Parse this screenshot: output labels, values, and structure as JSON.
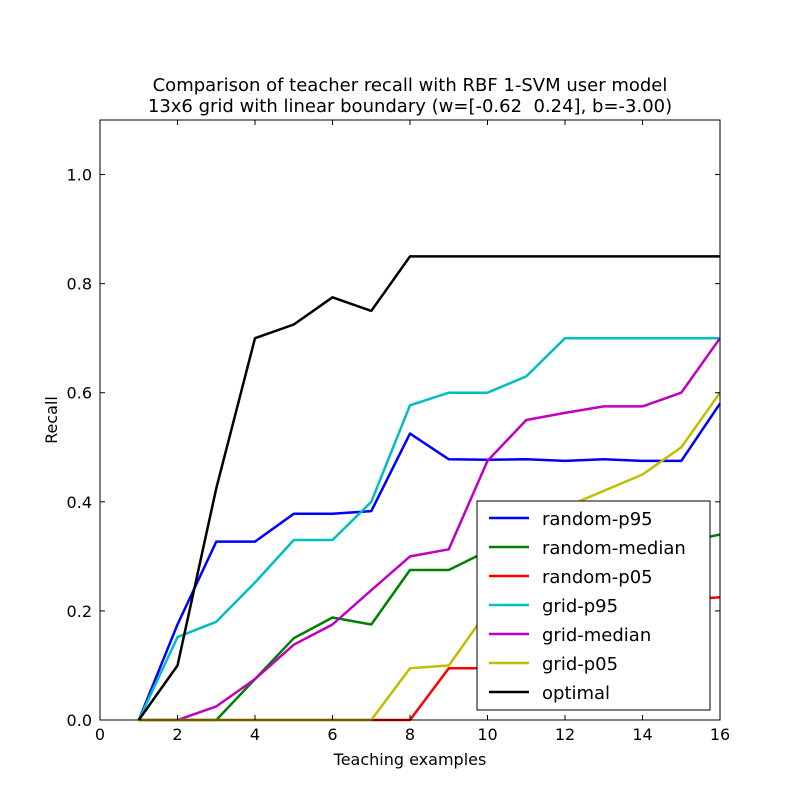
{
  "chart_data": {
    "type": "line",
    "title": "Comparison of teacher recall with RBF 1-SVM user model",
    "subtitle": "13x6 grid with linear boundary (w=[-0.62  0.24], b=-3.00)",
    "xlabel": "Teaching examples",
    "ylabel": "Recall",
    "xlim": [
      0,
      16
    ],
    "ylim": [
      0,
      1.1
    ],
    "xticks": [
      0,
      2,
      4,
      6,
      8,
      10,
      12,
      14,
      16
    ],
    "xtick_labels": [
      "0",
      "2",
      "4",
      "6",
      "8",
      "10",
      "12",
      "14",
      "16"
    ],
    "yticks": [
      0,
      0.2,
      0.4,
      0.6,
      0.8,
      1.0
    ],
    "ytick_labels": [
      "0.0",
      "0.2",
      "0.4",
      "0.6",
      "0.8",
      "1.0"
    ],
    "grid": false,
    "legend_position": "lower-right",
    "x": [
      1,
      2,
      3,
      4,
      5,
      6,
      7,
      8,
      9,
      10,
      11,
      12,
      13,
      14,
      15,
      16
    ],
    "series": [
      {
        "name": "random-p95",
        "color": "#0000ff",
        "values": [
          0,
          0.175,
          0.327,
          0.327,
          0.378,
          0.378,
          0.383,
          0.525,
          0.478,
          0.477,
          0.478,
          0.475,
          0.478,
          0.475,
          0.475,
          0.58
        ]
      },
      {
        "name": "random-median",
        "color": "#008000",
        "values": [
          0,
          0,
          0,
          0.075,
          0.15,
          0.188,
          0.175,
          0.275,
          0.275,
          0.31,
          0.32,
          0.32,
          0.32,
          0.32,
          0.325,
          0.34
        ]
      },
      {
        "name": "random-p05",
        "color": "#ff0000",
        "values": [
          0,
          0,
          0,
          0,
          0,
          0,
          0,
          0,
          0.095,
          0.095,
          0.1,
          0.12,
          0.15,
          0.2,
          0.22,
          0.225
        ]
      },
      {
        "name": "grid-p95",
        "color": "#00bfbf",
        "values": [
          0,
          0.152,
          0.18,
          0.252,
          0.33,
          0.33,
          0.4,
          0.577,
          0.6,
          0.6,
          0.63,
          0.7,
          0.7,
          0.7,
          0.7,
          0.7
        ]
      },
      {
        "name": "grid-median",
        "color": "#bf00bf",
        "values": [
          0,
          0,
          0.025,
          0.075,
          0.138,
          0.175,
          0.238,
          0.3,
          0.313,
          0.475,
          0.55,
          0.563,
          0.575,
          0.575,
          0.6,
          0.7
        ]
      },
      {
        "name": "grid-p05",
        "color": "#bfbf00",
        "values": [
          0,
          0,
          0,
          0,
          0,
          0,
          0,
          0.095,
          0.1,
          0.2,
          0.3,
          0.39,
          0.42,
          0.45,
          0.5,
          0.6
        ]
      },
      {
        "name": "optimal",
        "color": "#000000",
        "values": [
          0,
          0.1,
          0.425,
          0.7,
          0.725,
          0.775,
          0.75,
          0.85,
          0.85,
          0.85,
          0.85,
          0.85,
          0.85,
          0.85,
          0.85,
          0.85
        ]
      }
    ]
  }
}
